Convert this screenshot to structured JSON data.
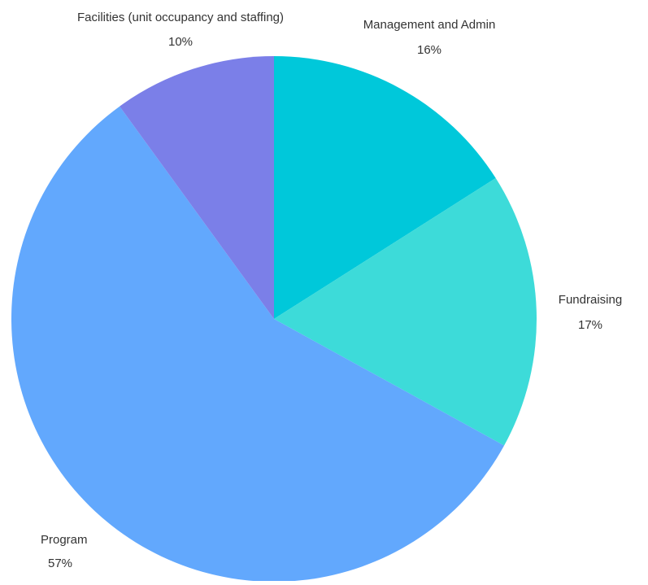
{
  "chart_data": {
    "type": "pie",
    "slices": [
      {
        "label": "Management and Admin",
        "percent_label": "16%",
        "value": 16,
        "color": "#00c8da"
      },
      {
        "label": "Fundraising",
        "percent_label": "17%",
        "value": 17,
        "color": "#3ddbd9"
      },
      {
        "label": "Program",
        "percent_label": "57%",
        "value": 57,
        "color": "#62a8fd"
      },
      {
        "label": "Facilities (unit occupancy and staffing)",
        "percent_label": "10%",
        "value": 10,
        "color": "#7b7fe8"
      }
    ]
  }
}
